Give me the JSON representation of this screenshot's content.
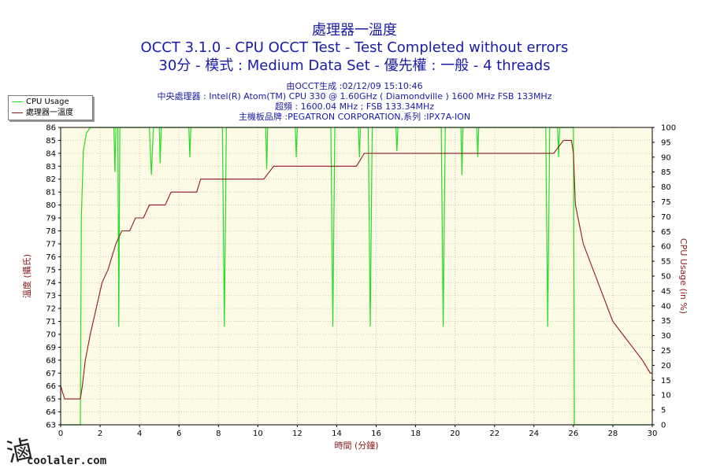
{
  "header": {
    "line1": "處理器一溫度",
    "line2": "OCCT 3.1.0 - CPU OCCT Test - Test Completed without errors",
    "line3": "30分 - 模式 : Medium Data Set - 優先權 : 一般 - 4 threads"
  },
  "info": {
    "created": "由OCCT生成 :02/12/09 15:10:46",
    "cpu": "中央處理器 : Intel(R) Atom(TM) CPU 330 @ 1.60GHz ( Diamondville ) 1600 MHz FSB 133MHz",
    "oc": "超頻 : 1600.04 MHz ; FSB 133.34MHz",
    "board": "主機板品牌 :PEGATRON CORPORATION,系列 :IPX7A-ION"
  },
  "watermark": {
    "text": "coolaler.com",
    "glyph": "滷"
  },
  "chart_data": {
    "type": "line",
    "xlabel": "時間 (分鐘)",
    "ylabel_left": "溫度 (攝氏)",
    "ylabel_right": "CPU Usage (in %)",
    "xlim": [
      0,
      30
    ],
    "ylim_left": [
      63,
      86
    ],
    "ylim_right": [
      0,
      100
    ],
    "x_ticks": [
      "0",
      "2",
      "4",
      "6",
      "8",
      "10",
      "12",
      "14",
      "16",
      "18",
      "20",
      "22",
      "24",
      "26",
      "28",
      "30"
    ],
    "y_left_ticks": [
      "63",
      "64",
      "65",
      "66",
      "67",
      "68",
      "69",
      "70",
      "71",
      "72",
      "73",
      "74",
      "75",
      "76",
      "77",
      "78",
      "79",
      "80",
      "81",
      "82",
      "83",
      "84",
      "85",
      "86"
    ],
    "y_right_ticks": [
      "0",
      "5",
      "10",
      "15",
      "20",
      "25",
      "30",
      "35",
      "40",
      "45",
      "50",
      "55",
      "60",
      "65",
      "70",
      "75",
      "80",
      "85",
      "90",
      "95",
      "100"
    ],
    "grid": true,
    "legend_position": "top-left",
    "series": [
      {
        "name": "CPU Usage",
        "color": "#22dd22",
        "axis": "right",
        "points": [
          [
            0,
            0
          ],
          [
            0.95,
            0
          ],
          [
            1.0,
            0
          ],
          [
            1.05,
            70
          ],
          [
            1.15,
            92
          ],
          [
            1.3,
            98
          ],
          [
            1.5,
            100
          ],
          [
            2.7,
            100
          ],
          [
            2.75,
            85
          ],
          [
            2.8,
            100
          ],
          [
            2.9,
            100
          ],
          [
            2.95,
            33
          ],
          [
            3.0,
            100
          ],
          [
            4.5,
            100
          ],
          [
            4.6,
            84
          ],
          [
            4.7,
            100
          ],
          [
            5.0,
            100
          ],
          [
            5.05,
            88
          ],
          [
            5.1,
            100
          ],
          [
            6.5,
            100
          ],
          [
            6.55,
            90
          ],
          [
            6.6,
            100
          ],
          [
            8.2,
            100
          ],
          [
            8.3,
            33
          ],
          [
            8.4,
            100
          ],
          [
            10.4,
            100
          ],
          [
            10.45,
            86
          ],
          [
            10.5,
            100
          ],
          [
            11.9,
            100
          ],
          [
            11.95,
            90
          ],
          [
            12.0,
            100
          ],
          [
            13.7,
            100
          ],
          [
            13.8,
            33
          ],
          [
            13.9,
            100
          ],
          [
            15.1,
            100
          ],
          [
            15.15,
            90
          ],
          [
            15.2,
            100
          ],
          [
            15.6,
            100
          ],
          [
            15.7,
            33
          ],
          [
            15.8,
            100
          ],
          [
            17.0,
            100
          ],
          [
            17.05,
            92
          ],
          [
            17.1,
            100
          ],
          [
            19.3,
            100
          ],
          [
            19.4,
            33
          ],
          [
            19.5,
            100
          ],
          [
            20.3,
            100
          ],
          [
            20.35,
            84
          ],
          [
            20.4,
            100
          ],
          [
            21.1,
            100
          ],
          [
            21.15,
            90
          ],
          [
            21.2,
            100
          ],
          [
            24.6,
            100
          ],
          [
            24.7,
            33
          ],
          [
            24.8,
            100
          ],
          [
            25.2,
            100
          ],
          [
            25.25,
            90
          ],
          [
            25.3,
            100
          ],
          [
            26.0,
            100
          ],
          [
            26.05,
            0
          ],
          [
            30,
            0
          ]
        ]
      },
      {
        "name": "處理器一溫度",
        "color": "#8b1a1a",
        "axis": "left",
        "points": [
          [
            0,
            66
          ],
          [
            0.2,
            65
          ],
          [
            1.0,
            65
          ],
          [
            1.1,
            66
          ],
          [
            1.25,
            68
          ],
          [
            1.5,
            70
          ],
          [
            1.8,
            72
          ],
          [
            2.1,
            74
          ],
          [
            2.4,
            75
          ],
          [
            2.6,
            76
          ],
          [
            2.8,
            77
          ],
          [
            3.1,
            78
          ],
          [
            3.5,
            78
          ],
          [
            3.8,
            79
          ],
          [
            4.2,
            79
          ],
          [
            4.5,
            80
          ],
          [
            5.0,
            80
          ],
          [
            5.3,
            80
          ],
          [
            5.6,
            81
          ],
          [
            6.2,
            81
          ],
          [
            6.6,
            81
          ],
          [
            6.9,
            81
          ],
          [
            7.1,
            82
          ],
          [
            8.5,
            82
          ],
          [
            9.5,
            82
          ],
          [
            10.3,
            82
          ],
          [
            10.8,
            83
          ],
          [
            11.5,
            83
          ],
          [
            12.0,
            83
          ],
          [
            13.5,
            83
          ],
          [
            14.0,
            83
          ],
          [
            14.5,
            83
          ],
          [
            15.0,
            83
          ],
          [
            15.4,
            84
          ],
          [
            15.8,
            84
          ],
          [
            16.5,
            84
          ],
          [
            17.0,
            84
          ],
          [
            17.8,
            84
          ],
          [
            18.5,
            84
          ],
          [
            20.0,
            84
          ],
          [
            22.0,
            84
          ],
          [
            24.0,
            84
          ],
          [
            25.0,
            84
          ],
          [
            25.5,
            85
          ],
          [
            25.9,
            85
          ],
          [
            26.0,
            84
          ],
          [
            26.1,
            80
          ],
          [
            26.5,
            77
          ],
          [
            27.0,
            75
          ],
          [
            27.5,
            73
          ],
          [
            28.0,
            71
          ],
          [
            28.5,
            70
          ],
          [
            29.0,
            69
          ],
          [
            29.5,
            68
          ],
          [
            29.9,
            67
          ],
          [
            30,
            67
          ]
        ]
      }
    ]
  }
}
